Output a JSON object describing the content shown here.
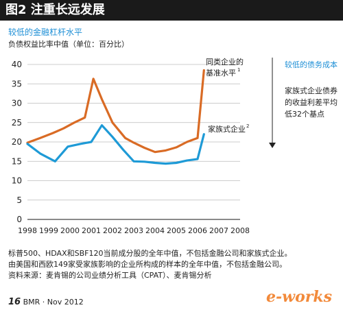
{
  "header": {
    "title": "图2 注重长远发展"
  },
  "subtitle": "较低的金融杠杆水平",
  "ylabel": "负债权益比率中值（单位：百分比）",
  "chart_data": {
    "type": "line",
    "x": [
      "1998",
      "1999",
      "2000",
      "2001",
      "2002",
      "2003",
      "2004",
      "2005",
      "2006",
      "2007",
      "2008"
    ],
    "ylim": [
      0,
      40
    ],
    "yticks": [
      0,
      5,
      10,
      15,
      20,
      25,
      30,
      35,
      40
    ],
    "grid": true,
    "series": [
      {
        "name": "同类企业的基准水平¹",
        "label_line1": "同类企业的",
        "label_line2": "基准水平",
        "label_sup": "1",
        "color": "#d96b25",
        "x": [
          1998,
          1998.6,
          1999.2,
          1999.7,
          2000.2,
          2000.7,
          2001.1,
          2001.5,
          2002.0,
          2002.6,
          2003.0,
          2003.5,
          2004.0,
          2004.5,
          2005.0,
          2005.5,
          2006.0,
          2006.3
        ],
        "values": [
          19.8,
          21.0,
          22.3,
          23.5,
          25.0,
          26.3,
          36.3,
          31.0,
          25.0,
          21.0,
          19.8,
          18.5,
          17.4,
          17.8,
          18.6,
          20.0,
          21.0,
          38.5
        ]
      },
      {
        "name": "家族式企业²",
        "label_line1": "家族式企业",
        "label_sup": "2",
        "color": "#1e9ad6",
        "x": [
          1998,
          1998.6,
          1999.3,
          1999.9,
          2000.5,
          2001.0,
          2001.5,
          2002.0,
          2002.5,
          2003.0,
          2003.5,
          2004.0,
          2004.5,
          2005.0,
          2005.5,
          2006.0,
          2006.3
        ],
        "values": [
          19.5,
          17.0,
          15.0,
          18.8,
          19.5,
          20.0,
          24.3,
          21.3,
          18.0,
          15.0,
          14.9,
          14.6,
          14.4,
          14.6,
          15.2,
          15.6,
          22.0
        ]
      }
    ],
    "annotation": {
      "title": "较低的债务成本",
      "lines": [
        "家族式企业债券",
        "的收益利差平均",
        "低32个基点"
      ]
    }
  },
  "notes": [
    "标普500、HDAX和SBF120当前成分股的全年中值，不包括金融公司和家族式企业。",
    "由美国和西欧149家受家族影响的企业所构成的样本的全年中值，不包括金融公司。",
    "资料来源：麦肯锡的公司业绩分析工具（CPAT）、麦肯锡分析"
  ],
  "footer": {
    "page": "16",
    "pub": "BMR · Nov 2012"
  },
  "watermark": "e-works"
}
